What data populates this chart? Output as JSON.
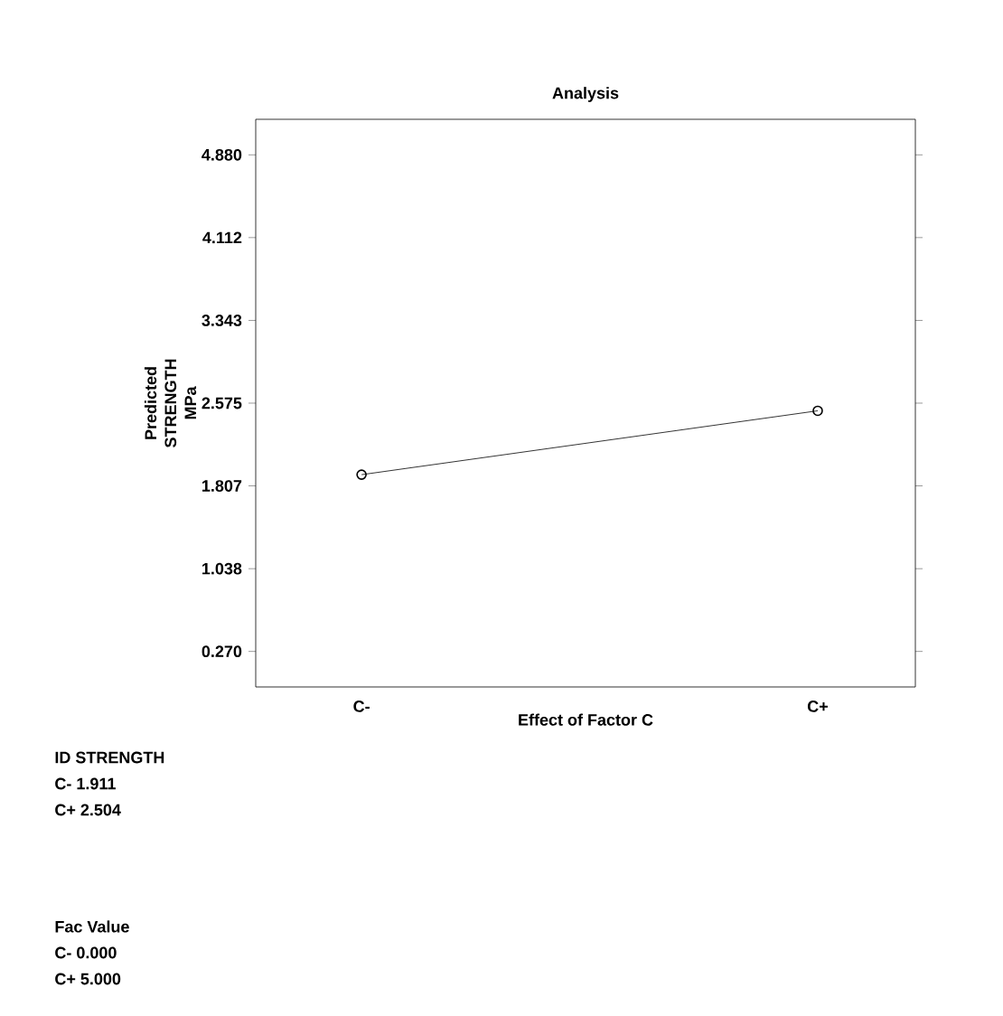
{
  "chart_data": {
    "type": "line",
    "title": "Analysis",
    "xlabel": "Effect of Factor C",
    "ylabel": "Predicted STRENGTH MPa",
    "categories": [
      "C-",
      "C+"
    ],
    "series": [
      {
        "color": "#000000",
        "values": [
          1.911,
          2.504
        ]
      }
    ],
    "ylim": [
      -0.06,
      5.21
    ],
    "yticks": [
      {
        "value": 0.27,
        "label": "0.270"
      },
      {
        "value": 1.038,
        "label": "1.038"
      },
      {
        "value": 1.807,
        "label": "1.807"
      },
      {
        "value": 2.575,
        "label": "2.575"
      },
      {
        "value": 3.343,
        "label": "3.343"
      },
      {
        "value": 4.112,
        "label": "4.112"
      },
      {
        "value": 4.88,
        "label": "4.880"
      }
    ],
    "marker": "circle",
    "line_style": "solid",
    "grid": false,
    "annotations": [
      "ID STRENGTH",
      "C- 1.911",
      "C+ 2.504",
      "Fac Value",
      "C- 0.000",
      "C+ 5.000"
    ]
  }
}
